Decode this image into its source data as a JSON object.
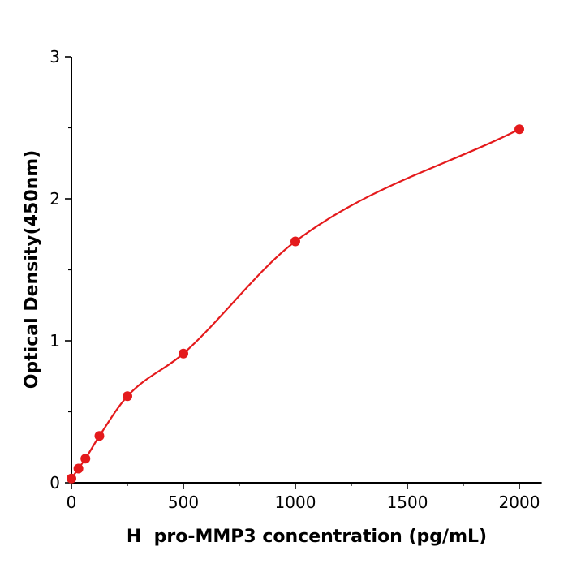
{
  "chart_data": {
    "type": "scatter",
    "title": "",
    "xlabel": "H  pro-MMP3 concentration (pg/mL)",
    "ylabel": "Optical Density(450nm)",
    "x": [
      0,
      31.25,
      62.5,
      125,
      250,
      500,
      1000,
      2000
    ],
    "y": [
      0.03,
      0.1,
      0.17,
      0.33,
      0.61,
      0.91,
      1.7,
      2.49
    ],
    "xlim": [
      0,
      2100
    ],
    "ylim": [
      0,
      3
    ],
    "x_ticks": [
      0,
      500,
      1000,
      1500,
      2000
    ],
    "x_tick_labels": [
      "0",
      "500",
      "1000",
      "1500",
      "2000"
    ],
    "y_ticks": [
      0,
      1,
      2,
      3
    ],
    "y_tick_labels": [
      "0",
      "1",
      "2",
      "3"
    ],
    "x_minor_ticks": [
      250,
      750,
      1250,
      1750
    ],
    "y_minor_ticks": [
      0.5,
      1.5,
      2.5
    ],
    "grid": false,
    "legend": "none",
    "marker": "circle",
    "marker_color": "#e41a1c",
    "line_color": "#e41a1c",
    "axis_color": "#000000",
    "curve": "smooth saturating fit through data points"
  }
}
